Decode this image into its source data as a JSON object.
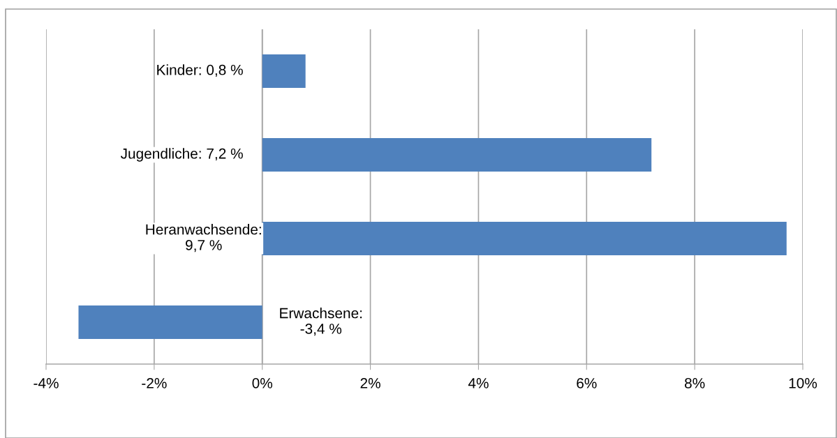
{
  "chart_data": {
    "type": "bar",
    "orientation": "horizontal",
    "categories": [
      null,
      null,
      null,
      null
    ],
    "values": [
      0.8,
      7.2,
      9.7,
      -3.4
    ],
    "value_labels": [
      "Kinder: 0,8 %",
      "Jugendliche: 7,2 %",
      "Heranwachsende:\n9,7 %",
      "Erwachsene:\n-3,4 %"
    ],
    "color": "#4f81bd",
    "xlim": [
      -4,
      10
    ],
    "xticks": [
      {
        "value": -4,
        "label": "-4%"
      },
      {
        "value": -2,
        "label": "-2%"
      },
      {
        "value": 0,
        "label": "0%"
      },
      {
        "value": 2,
        "label": "2%"
      },
      {
        "value": 4,
        "label": "4%"
      },
      {
        "value": 6,
        "label": "6%"
      },
      {
        "value": 8,
        "label": "8%"
      },
      {
        "value": 10,
        "label": "10%"
      }
    ],
    "grid": "x",
    "tick_labels": "x"
  }
}
